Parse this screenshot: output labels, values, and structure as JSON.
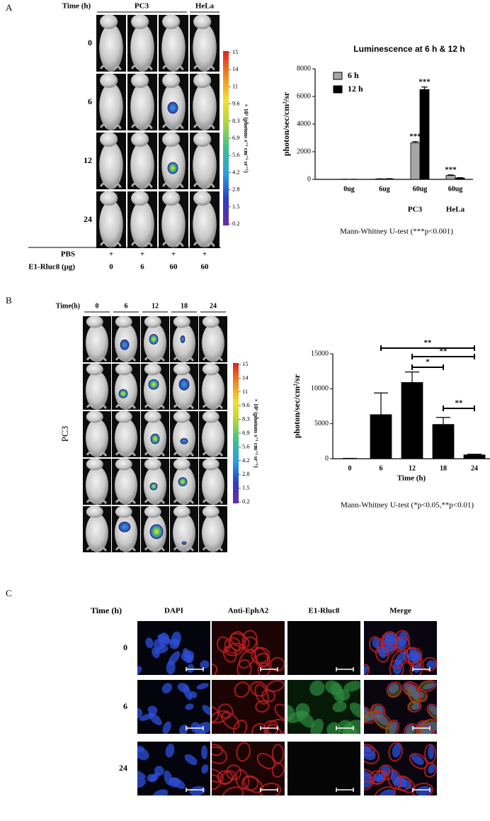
{
  "panel_a": {
    "label": "A",
    "time_header": "Time (h)",
    "groups": [
      "PC3",
      "HeLa"
    ],
    "rows": [
      "0",
      "6",
      "12",
      "24"
    ],
    "pbs_label": "PBS",
    "pbs": [
      "+",
      "+",
      "+",
      "+"
    ],
    "dose_label": "E1-Rluc8 (μg)",
    "doses": [
      "0",
      "6",
      "60",
      "60"
    ],
    "colorbar": {
      "unit": "× 10³ (photons s⁻¹ cm⁻² sr⁻¹)",
      "ticks": [
        15,
        14,
        11,
        9.6,
        8.3,
        6.9,
        5.6,
        4.2,
        2.8,
        1.5,
        0.2
      ]
    }
  },
  "panel_b": {
    "label": "B",
    "time_header": "Time(h)",
    "times": [
      "0",
      "6",
      "12",
      "18",
      "24"
    ],
    "cell_line": "PC3",
    "colorbar": {
      "unit": "× 10³ (photons s⁻¹ cm⁻² sr⁻¹)",
      "ticks": [
        15,
        14,
        11,
        9.6,
        8.3,
        6.9,
        5.6,
        4.2,
        2.8,
        1.5,
        0.2
      ]
    }
  },
  "panel_c": {
    "label": "C",
    "time_header": "Time (h)",
    "channels": [
      "DAPI",
      "Anti-EphA2",
      "E1-Rluc8",
      "Merge"
    ],
    "rows": [
      "0",
      "6",
      "24"
    ]
  },
  "chart_data": [
    {
      "type": "bar",
      "title": "Luminescence at 6 h & 12 h",
      "y_label": "photon/sec/cm²/sr",
      "categories": [
        "0ug",
        "6ug",
        "60ug",
        "60ug"
      ],
      "groups": [
        "PC3",
        "HeLa"
      ],
      "series": [
        {
          "name": "6 h",
          "color": "#a6a6a6",
          "values": [
            0,
            30,
            2650,
            280
          ],
          "errors": [
            5,
            10,
            80,
            40
          ],
          "significance": [
            null,
            null,
            "***",
            "***"
          ]
        },
        {
          "name": "12 h",
          "color": "#000000",
          "values": [
            0,
            40,
            6500,
            100
          ],
          "errors": [
            5,
            10,
            180,
            20
          ],
          "significance": [
            null,
            null,
            "***",
            null
          ]
        }
      ],
      "ylim": [
        0,
        8000
      ],
      "yticks": [
        0,
        2000,
        4000,
        6000,
        8000
      ],
      "legend": "upper left",
      "footnote": "Mann-Whitney U-test (***p<0.001)"
    },
    {
      "type": "bar",
      "y_label": "photon/sec/cm²/sr",
      "x_label": "Time (h)",
      "categories": [
        "0",
        "6",
        "12",
        "18",
        "24"
      ],
      "values": [
        0,
        6300,
        10900,
        4900,
        550
      ],
      "errors": [
        50,
        3100,
        1500,
        1000,
        100
      ],
      "color": "#000000",
      "ylim": [
        0,
        15000
      ],
      "yticks": [
        0,
        5000,
        10000,
        15000
      ],
      "comparisons": [
        {
          "from": "6",
          "to": "24",
          "label": "**"
        },
        {
          "from": "12",
          "to": "24",
          "label": "**"
        },
        {
          "from": "12",
          "to": "18",
          "label": "*"
        },
        {
          "from": "18",
          "to": "24",
          "label": "**"
        }
      ],
      "footnote": "Mann-Whitney U-test (*p<0.05,**p<0.01)"
    }
  ]
}
